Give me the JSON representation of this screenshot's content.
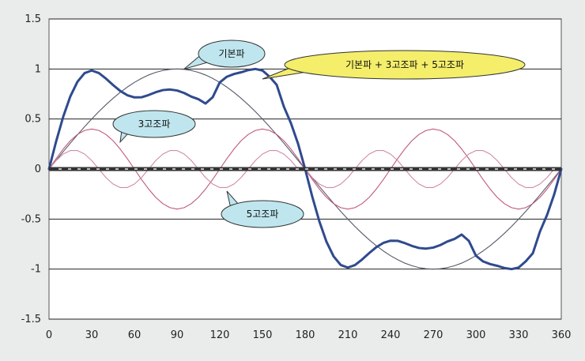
{
  "chart_data": {
    "type": "line",
    "title": "",
    "xlabel": "",
    "ylabel": "",
    "xlim": [
      0,
      360
    ],
    "ylim": [
      -1.5,
      1.5
    ],
    "x_ticks": [
      0,
      30,
      60,
      90,
      120,
      150,
      180,
      210,
      240,
      270,
      300,
      330,
      360
    ],
    "y_ticks": [
      1.5,
      1,
      0.5,
      0,
      -0.5,
      -1,
      -1.5
    ],
    "y_tick_labels": [
      "1.5",
      "1",
      "0.5",
      "0",
      "-0.5",
      "-1",
      "-1.5"
    ],
    "grid": "horizontal",
    "x_sample_step": 5,
    "series": [
      {
        "name": "기본파",
        "color": "#555a6a",
        "values": [
          0.0,
          0.087,
          0.174,
          0.259,
          0.342,
          0.423,
          0.5,
          0.574,
          0.643,
          0.707,
          0.766,
          0.819,
          0.866,
          0.906,
          0.94,
          0.966,
          0.985,
          0.996,
          1.0,
          0.996,
          0.985,
          0.966,
          0.94,
          0.906,
          0.866,
          0.819,
          0.766,
          0.707,
          0.643,
          0.574,
          0.5,
          0.423,
          0.342,
          0.259,
          0.174,
          0.087,
          0.0,
          -0.087,
          -0.174,
          -0.259,
          -0.342,
          -0.423,
          -0.5,
          -0.574,
          -0.643,
          -0.707,
          -0.766,
          -0.819,
          -0.866,
          -0.906,
          -0.94,
          -0.966,
          -0.985,
          -0.996,
          -1.0,
          -0.996,
          -0.985,
          -0.966,
          -0.94,
          -0.906,
          -0.866,
          -0.819,
          -0.766,
          -0.707,
          -0.643,
          -0.574,
          -0.5,
          -0.423,
          -0.342,
          -0.259,
          -0.174,
          -0.087,
          0.0
        ]
      },
      {
        "name": "3고조파",
        "color": "#c0587a",
        "values": [
          0.0,
          0.104,
          0.2,
          0.283,
          0.346,
          0.386,
          0.4,
          0.386,
          0.346,
          0.283,
          0.2,
          0.104,
          0.0,
          -0.104,
          -0.2,
          -0.283,
          -0.346,
          -0.386,
          -0.4,
          -0.386,
          -0.346,
          -0.283,
          -0.2,
          -0.104,
          0.0,
          0.104,
          0.2,
          0.283,
          0.346,
          0.386,
          0.4,
          0.386,
          0.346,
          0.283,
          0.2,
          0.104,
          0.0,
          -0.104,
          -0.2,
          -0.283,
          -0.346,
          -0.386,
          -0.4,
          -0.386,
          -0.346,
          -0.283,
          -0.2,
          -0.104,
          0.0,
          0.104,
          0.2,
          0.283,
          0.346,
          0.386,
          0.4,
          0.386,
          0.346,
          0.283,
          0.2,
          0.104,
          0.0,
          -0.104,
          -0.2,
          -0.283,
          -0.346,
          -0.386,
          -0.4,
          -0.386,
          -0.346,
          -0.283,
          -0.2,
          -0.104,
          0.0
        ]
      },
      {
        "name": "5고조파",
        "color": "#d08aa6",
        "values": [
          0.0,
          0.085,
          0.15,
          0.185,
          0.185,
          0.15,
          0.085,
          0.0,
          -0.085,
          -0.15,
          -0.185,
          -0.185,
          -0.15,
          -0.085,
          0.0,
          0.085,
          0.15,
          0.185,
          0.185,
          0.15,
          0.085,
          0.0,
          -0.085,
          -0.15,
          -0.185,
          -0.185,
          -0.15,
          -0.085,
          0.0,
          0.085,
          0.15,
          0.185,
          0.185,
          0.15,
          0.085,
          0.0,
          0.0,
          -0.085,
          -0.15,
          -0.185,
          -0.185,
          -0.15,
          -0.085,
          0.0,
          0.085,
          0.15,
          0.185,
          0.185,
          0.15,
          0.085,
          0.0,
          -0.085,
          -0.15,
          -0.185,
          -0.185,
          -0.15,
          -0.085,
          0.0,
          0.085,
          0.15,
          0.185,
          0.185,
          0.15,
          0.085,
          0.0,
          -0.085,
          -0.15,
          -0.185,
          -0.185,
          -0.15,
          -0.085,
          0.0,
          0.0
        ]
      },
      {
        "name": "기본파 + 3고조파 + 5고조파",
        "color": "#2f4a8e",
        "values": [
          0.0,
          0.276,
          0.524,
          0.727,
          0.873,
          0.959,
          0.985,
          0.96,
          0.904,
          0.84,
          0.781,
          0.738,
          0.716,
          0.717,
          0.74,
          0.768,
          0.789,
          0.795,
          0.785,
          0.76,
          0.724,
          0.698,
          0.655,
          0.717,
          0.866,
          0.923,
          0.95,
          0.967,
          0.989,
          1.0,
          0.985,
          0.923,
          0.842,
          0.625,
          0.459,
          0.254,
          0.0,
          -0.276,
          -0.524,
          -0.727,
          -0.873,
          -0.959,
          -0.985,
          -0.96,
          -0.904,
          -0.84,
          -0.781,
          -0.738,
          -0.716,
          -0.717,
          -0.74,
          -0.768,
          -0.789,
          -0.795,
          -0.785,
          -0.76,
          -0.724,
          -0.698,
          -0.655,
          -0.717,
          -0.866,
          -0.923,
          -0.95,
          -0.967,
          -0.989,
          -1.0,
          -0.985,
          -0.923,
          -0.842,
          -0.625,
          -0.459,
          -0.254,
          0.0
        ]
      }
    ],
    "callouts": [
      {
        "text": "기본파",
        "fill": "#bfe6ee",
        "target": [
          95,
          1.0
        ]
      },
      {
        "text": "기본파 + 3고조파 + 5고조파",
        "fill": "#f4ee6a",
        "target": [
          150,
          0.9
        ]
      },
      {
        "text": "3고조파",
        "fill": "#bfe6ee",
        "target": [
          50,
          0.27
        ]
      },
      {
        "text": "5고조파",
        "fill": "#bfe6ee",
        "target": [
          125,
          -0.22
        ]
      }
    ]
  },
  "colors": {
    "background": "#e9ecea",
    "plot_area": "#ffffff",
    "gridline": "#222222",
    "zero_line": "#333333"
  }
}
